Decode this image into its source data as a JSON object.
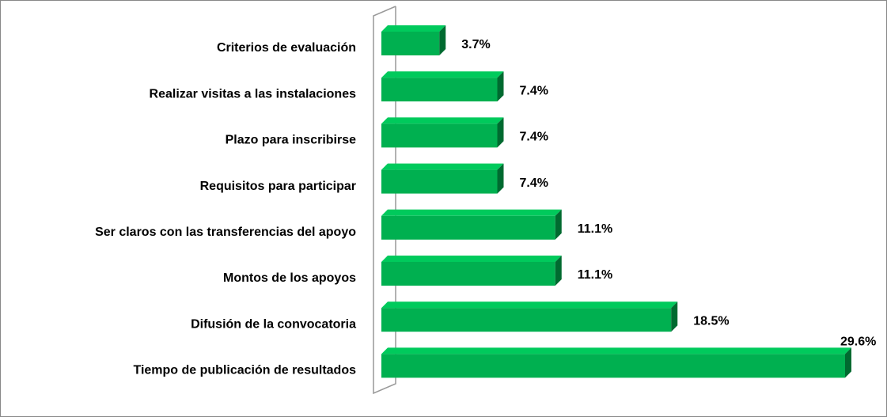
{
  "chart_data": {
    "type": "bar",
    "orientation": "horizontal",
    "categories": [
      "Criterios de evaluación",
      "Realizar visitas a las instalaciones",
      "Plazo para inscribirse",
      "Requisitos para participar",
      "Ser claros con las transferencias del apoyo",
      "Montos de los apoyos",
      "Difusión de la convocatoria",
      "Tiempo de publicación de resultados"
    ],
    "values": [
      3.7,
      7.4,
      7.4,
      7.4,
      11.1,
      11.1,
      18.5,
      29.6
    ],
    "value_labels": [
      "3.7%",
      "7.4%",
      "7.4%",
      "7.4%",
      "11.1%",
      "11.1%",
      "18.5%",
      "29.6%"
    ],
    "color": "#00b050"
  }
}
